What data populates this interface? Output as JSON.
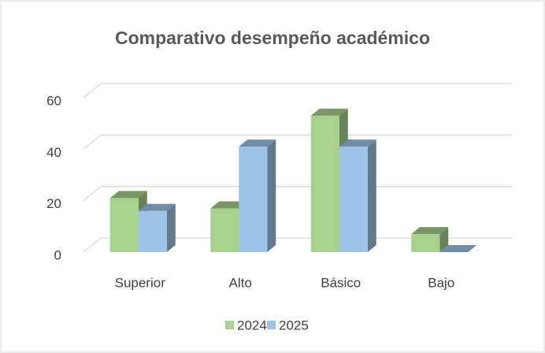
{
  "chart_data": {
    "type": "bar3d",
    "title": "Comparativo desempeño académico",
    "categories": [
      "Superior",
      "Alto",
      "Básico",
      "Bajo"
    ],
    "series": [
      {
        "name": "2024",
        "color": "#a9d18e",
        "values": [
          21,
          17,
          53,
          7
        ]
      },
      {
        "name": "2025",
        "color": "#9dc3e6",
        "values": [
          16,
          41,
          41,
          0
        ]
      }
    ],
    "ylim": [
      0,
      60
    ],
    "yticks": [
      0,
      20,
      40,
      60
    ],
    "grid": true,
    "legend": "bottom"
  }
}
